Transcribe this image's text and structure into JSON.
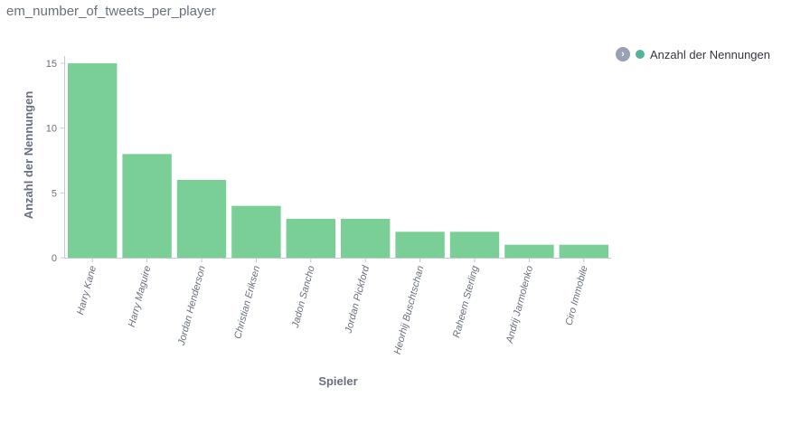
{
  "panel": {
    "title": "em_number_of_tweets_per_player"
  },
  "legend": {
    "toggle_icon": "chevron-right-icon",
    "items": [
      {
        "label": "Anzahl der Nennungen",
        "color": "#54b399"
      }
    ]
  },
  "chart_data": {
    "type": "bar",
    "categories": [
      "Harry Kane",
      "Harry Maguire",
      "Jordan Henderson",
      "Christian Eriksen",
      "Jadon Sancho",
      "Jordan Pickford",
      "Heorhij Buschtschan",
      "Raheem Sterling",
      "Andrij Jarmolenko",
      "Ciro Immobile"
    ],
    "series": [
      {
        "name": "Anzahl der Nennungen",
        "values": [
          15,
          8,
          6,
          4,
          3,
          3,
          2,
          2,
          1,
          1
        ]
      }
    ],
    "xlabel": "Spieler",
    "ylabel": "Anzahl der Nennungen",
    "ylim": [
      0,
      15
    ],
    "yticks": [
      0,
      5,
      10,
      15
    ],
    "bar_color": "#7acf97",
    "grid": false,
    "legend_position": "top-right"
  }
}
